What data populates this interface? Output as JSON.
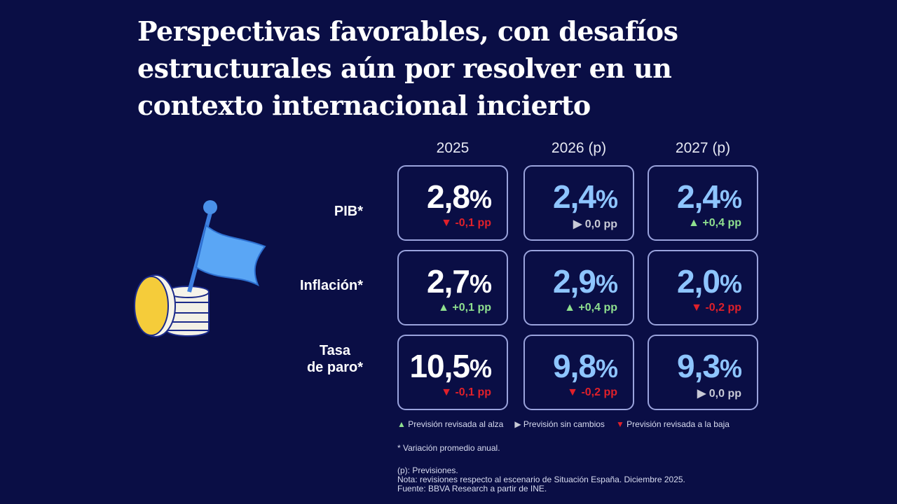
{
  "title": "Perspectivas favorables, con desafíos estructurales aún por resolver en un contexto internacional incierto",
  "columns": [
    "2025",
    "2026 (p)",
    "2027 (p)"
  ],
  "rows": [
    {
      "label": "PIB*",
      "cells": [
        {
          "value": "2,8",
          "unit": "%",
          "change": "-0,1 pp",
          "dir": "down"
        },
        {
          "value": "2,4",
          "unit": "%",
          "change": "0,0 pp",
          "dir": "flat"
        },
        {
          "value": "2,4",
          "unit": "%",
          "change": "+0,4 pp",
          "dir": "up"
        }
      ]
    },
    {
      "label": "Inflación*",
      "cells": [
        {
          "value": "2,7",
          "unit": "%",
          "change": "+0,1 pp",
          "dir": "up"
        },
        {
          "value": "2,9",
          "unit": "%",
          "change": "+0,4 pp",
          "dir": "up"
        },
        {
          "value": "2,0",
          "unit": "%",
          "change": "-0,2 pp",
          "dir": "down"
        }
      ]
    },
    {
      "label": "Tasa de paro*",
      "label_lines": [
        "Tasa",
        "de paro*"
      ],
      "cells": [
        {
          "value": "10,5",
          "unit": "%",
          "change": "-0,1 pp",
          "dir": "down"
        },
        {
          "value": "9,8",
          "unit": "%",
          "change": "-0,2 pp",
          "dir": "down"
        },
        {
          "value": "9,3",
          "unit": "%",
          "change": "0,0 pp",
          "dir": "flat"
        }
      ]
    }
  ],
  "legend": {
    "up": "Previsión revisada al alza",
    "flat": "Previsión sin cambios",
    "down": "Previsión revisada a la baja"
  },
  "notes": {
    "asterisk": "* Variación promedio anual.",
    "p": "(p): Previsiones.",
    "nota": "Nota: revisiones respecto al escenario de Situación España. Diciembre 2025.",
    "fuente": "Fuente: BBVA Research a partir de INE."
  },
  "colors": {
    "background": "#0a0e45",
    "current": "#ffffff",
    "forecast": "#8ec5ff",
    "up": "#8fe08f",
    "flat": "#c8cad6",
    "down": "#e0202a",
    "border": "#9aa3dc"
  },
  "icons": {
    "up": "▲",
    "flat": "▶",
    "down": "▼",
    "illustration": "flag-on-coins-icon"
  }
}
